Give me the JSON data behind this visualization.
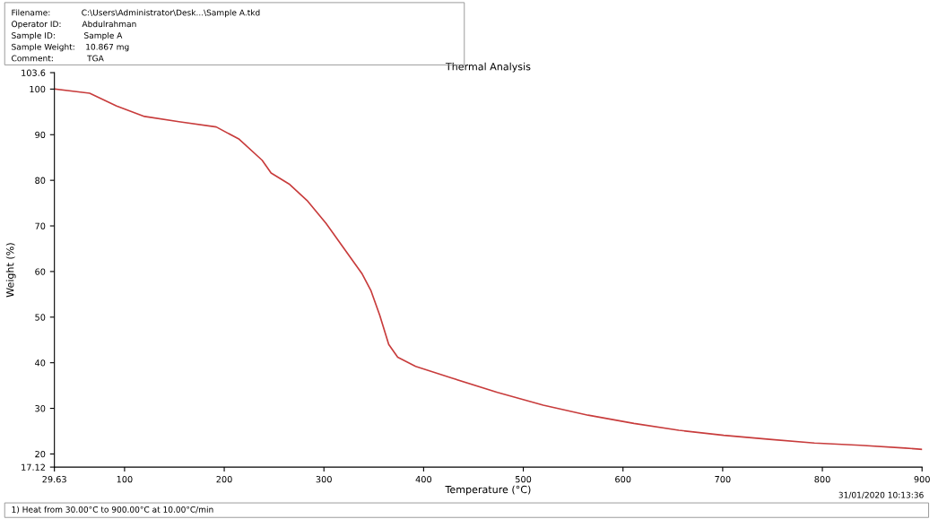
{
  "chart_data": {
    "type": "line",
    "title": "Thermal Analysis",
    "xlabel": "Temperature (°C)",
    "ylabel": "Weight (%)",
    "annotations": [
      "Filename:            C:\\Users\\Administrator\\Desk...\\Sample A.tkd",
      "Operator ID:        Abdulrahman",
      "Sample ID:           Sample A",
      "Sample Weight:    10.867 mg",
      "Comment:             TGA",
      "1) Heat from 30.00°C to 900.00°C at 10.00°C/min",
      "31/01/2020 10:13:36"
    ],
    "x": [
      30,
      65,
      92,
      120,
      156,
      192,
      215,
      238,
      247,
      265,
      283,
      302,
      320,
      338,
      347,
      356,
      365,
      374,
      392,
      429,
      474,
      520,
      565,
      611,
      656,
      701,
      747,
      792,
      838,
      883,
      900
    ],
    "series": [
      {
        "color": "#c83c3c",
        "values": [
          100,
          99.1,
          96.3,
          94,
          92.8,
          91.7,
          89,
          84.4,
          81.6,
          79.2,
          75.6,
          70.6,
          65.1,
          59.6,
          55.9,
          50.4,
          44,
          41.2,
          39.2,
          36.6,
          33.5,
          30.7,
          28.5,
          26.7,
          25.2,
          24.1,
          23.2,
          22.4,
          21.9,
          21.3,
          21.0
        ]
      }
    ],
    "xlim": [
      29.63,
      900
    ],
    "xticks": [
      29.63,
      100,
      200,
      300,
      400,
      500,
      600,
      700,
      800,
      900
    ],
    "ylim": [
      17.12,
      103.6
    ],
    "yticks": [
      17.12,
      20,
      30,
      40,
      50,
      60,
      70,
      80,
      90,
      100,
      103.6
    ],
    "grid": false,
    "legend": false,
    "marker": "none",
    "line_style": "solid"
  }
}
